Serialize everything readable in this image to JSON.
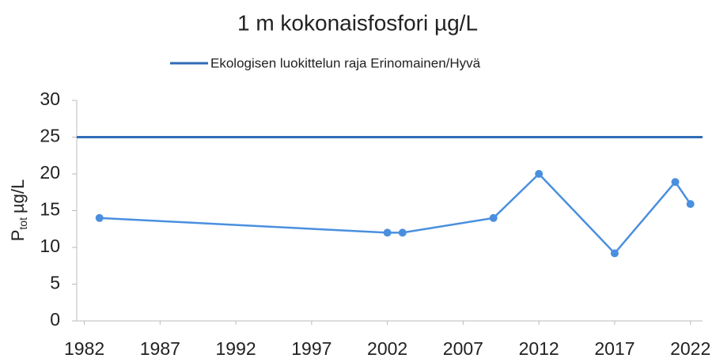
{
  "chart_data": {
    "type": "line",
    "title": "1 m kokonaisfosfori µg/L",
    "ylabel": {
      "main": "P",
      "sub": "tot",
      "unit": "µg/L"
    },
    "series": [
      {
        "name": "Ekologisen luokittelun raja Erinomainen/Hyvä",
        "color": "#2f6db5",
        "x": [
          1981.5,
          2022.8
        ],
        "values": [
          25,
          25
        ]
      },
      {
        "color": "#4a8fdf",
        "x": [
          1983,
          2002,
          2003,
          2009,
          2012,
          2017,
          2021,
          2022
        ],
        "values": [
          14,
          12,
          12,
          14,
          20,
          9.2,
          18.9,
          15.9
        ],
        "markers": true
      }
    ],
    "xlim": [
      1981.5,
      2022.8
    ],
    "xticks": [
      1982,
      1987,
      1992,
      1997,
      2002,
      2007,
      2012,
      2017,
      2022
    ],
    "ylim": [
      0,
      30
    ],
    "yticks": [
      0,
      5,
      10,
      15,
      20,
      25,
      30
    ],
    "legend": "top",
    "grid": false
  }
}
